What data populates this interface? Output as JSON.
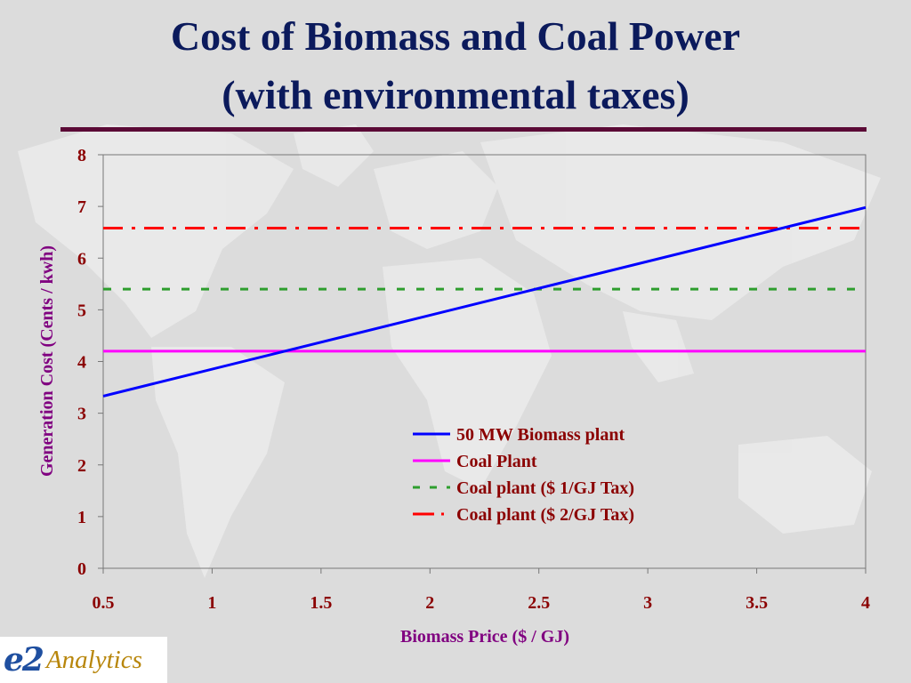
{
  "slide": {
    "title_line1": "Cost of Biomass and Coal Power",
    "title_line2": "(with environmental taxes)"
  },
  "logo": {
    "mark": "e2",
    "text": "Analytics"
  },
  "colors": {
    "title": "#0b1a5c",
    "rule": "#5b0a36",
    "axis_label": "#800080",
    "tick_label": "#8b0000",
    "legend_text": "#8b0000"
  },
  "chart_data": {
    "type": "line",
    "title": "",
    "xlabel": "Biomass Price ($ / GJ)",
    "ylabel": "Generation Cost (Cents / kwh)",
    "xlim": [
      0.5,
      4
    ],
    "ylim": [
      0,
      8
    ],
    "xticks": [
      0.5,
      1,
      1.5,
      2,
      2.5,
      3,
      3.5,
      4
    ],
    "xtick_labels": [
      "0.5",
      "1",
      "1.5",
      "2",
      "2.5",
      "3",
      "3.5",
      "4"
    ],
    "yticks": [
      0,
      1,
      2,
      3,
      4,
      5,
      6,
      7,
      8
    ],
    "ytick_labels": [
      "0",
      "1",
      "2",
      "3",
      "4",
      "5",
      "6",
      "7",
      "8"
    ],
    "grid": false,
    "legend_position": "lower-right",
    "series": [
      {
        "name": "50 MW Biomass plant",
        "color": "#0000ff",
        "style": "solid",
        "x": [
          0.5,
          4
        ],
        "y": [
          3.33,
          6.98
        ]
      },
      {
        "name": "Coal Plant",
        "color": "#ff00ff",
        "style": "solid",
        "x": [
          0.5,
          4
        ],
        "y": [
          4.2,
          4.2
        ]
      },
      {
        "name": "Coal plant ($ 1/GJ Tax)",
        "color": "#2e9e2e",
        "style": "dashed",
        "x": [
          0.5,
          4
        ],
        "y": [
          5.4,
          5.4
        ]
      },
      {
        "name": "Coal plant ($ 2/GJ Tax)",
        "color": "#ff0000",
        "style": "dash-dot",
        "x": [
          0.5,
          4
        ],
        "y": [
          6.58,
          6.58
        ]
      }
    ]
  }
}
